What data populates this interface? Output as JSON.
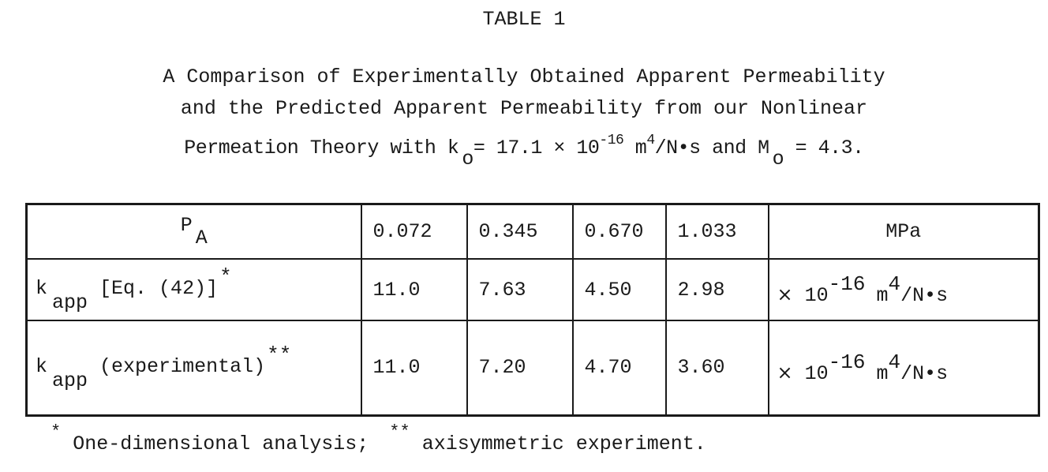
{
  "table_label": "TABLE 1",
  "caption": {
    "line1": "A Comparison of Experimentally Obtained Apparent Permeability",
    "line2": "and the Predicted Apparent Permeability from our Nonlinear",
    "line3_pre": "Permeation Theory with k",
    "line3_sub1": "o",
    "line3_mid": "= 17.1 × 10",
    "line3_exp": "-16",
    "line3_unit": " m",
    "line3_unit_exp": "4",
    "line3_tail": "/N•s and M",
    "line3_sub2": "o",
    "line3_end": " = 4.3."
  },
  "table": {
    "header": {
      "label_main": "P",
      "label_sub": "A",
      "values": [
        "0.072",
        "0.345",
        "0.670",
        "1.033"
      ],
      "unit": "MPa"
    },
    "rows": [
      {
        "label_main": "k",
        "label_sub": "app",
        "label_text": "[Eq. (42)]",
        "label_mark": "*",
        "values": [
          "11.0",
          "7.63",
          "4.50",
          "2.98"
        ],
        "unit_times": "×",
        "unit_base": " 10",
        "unit_exp": "-16",
        "unit_m": "m",
        "unit_m_exp": "4",
        "unit_tail": "/N•s"
      },
      {
        "label_main": "k",
        "label_sub": "app",
        "label_text": "(experimental)",
        "label_mark": "**",
        "values": [
          "11.0",
          "7.20",
          "4.70",
          "3.60"
        ],
        "unit_times": "×",
        "unit_base": " 10",
        "unit_exp": "-16",
        "unit_m": "m",
        "unit_m_exp": "4",
        "unit_tail": "/N•s"
      }
    ]
  },
  "footnote": {
    "mark1": "*",
    "text1": "One-dimensional analysis;",
    "mark2": "**",
    "text2": "axisymmetric experiment."
  }
}
